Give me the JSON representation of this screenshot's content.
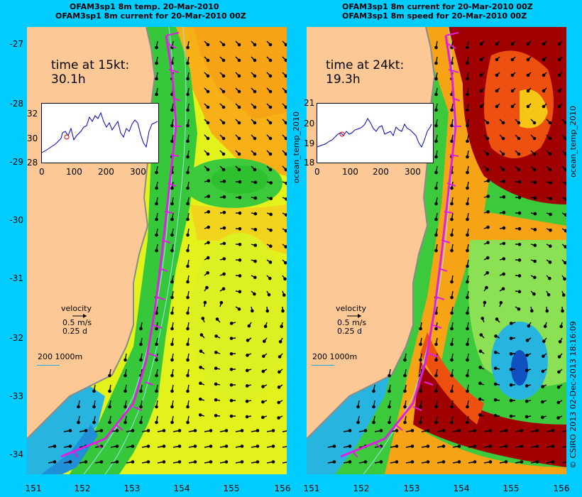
{
  "left": {
    "title1": "OFAM3sp1 8m temp. 20-Mar-2010",
    "title2": "OFAM3sp1 8m current for 20-Mar-2010 00Z",
    "time_label": "time at 15kt:",
    "time_value": "30.1h",
    "inset_yticks": [
      "32",
      "30",
      "28"
    ],
    "inset_xticks": [
      "0",
      "100",
      "200",
      "300"
    ],
    "velocity_label": "velocity",
    "velocity_speed": "0.5 m/s",
    "velocity_days": "0.25 d",
    "depth_label": "200  1000m"
  },
  "right": {
    "title1": "OFAM3sp1 8m current for 20-Mar-2010 00Z",
    "title2": "OFAM3sp1 8m speed for 20-Mar-2010 00Z",
    "time_label": "time at 24kt:",
    "time_value": "19.3h",
    "inset_yticks": [
      "21",
      "20",
      "19",
      "18"
    ],
    "inset_xticks": [
      "0",
      "100",
      "200",
      "300"
    ],
    "velocity_label": "velocity",
    "velocity_speed": "0.5 m/s",
    "velocity_days": "0.25 d",
    "depth_label": "200  1000m"
  },
  "y_axis": [
    "-27",
    "-28",
    "-29",
    "-30",
    "-31",
    "-32",
    "-33",
    "-34"
  ],
  "x_axis": [
    "151",
    "152",
    "153",
    "154",
    "155",
    "156"
  ],
  "vertical_label_1": "ocean_temp_2010",
  "vertical_label_2": "ocean_temp_2010",
  "footer_vertical": "© CSIRO 2013   02-Dec-2013 18:16:09",
  "colors": {
    "background": "#00ccff",
    "land": "#fcc895",
    "route": "#e020e0",
    "vector": "#000000",
    "inset_line": "#0000c0"
  }
}
